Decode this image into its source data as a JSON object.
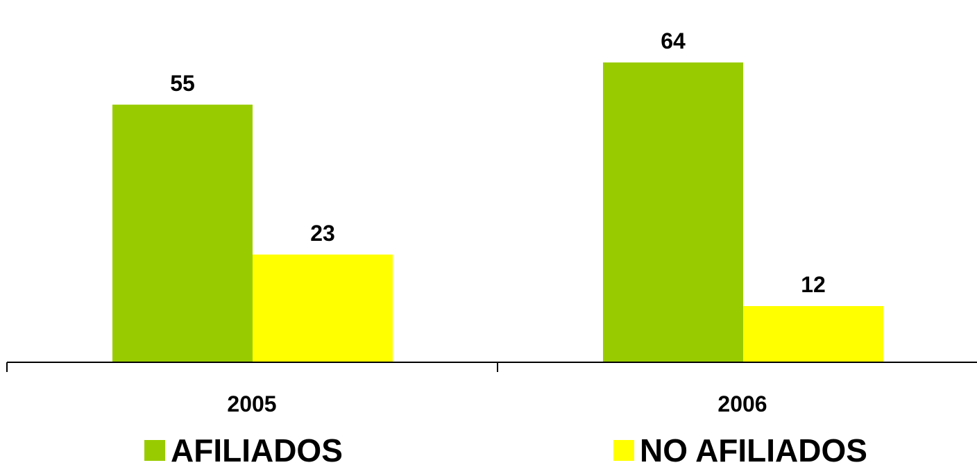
{
  "chart_data": {
    "type": "bar",
    "categories": [
      "2005",
      "2006"
    ],
    "series": [
      {
        "name": "AFILIADOS",
        "values": [
          55,
          64
        ],
        "color": "#99CC00"
      },
      {
        "name": "NO AFILIADOS",
        "values": [
          23,
          12
        ],
        "color": "#FFFF00"
      }
    ],
    "title": "",
    "xlabel": "",
    "ylabel": "",
    "ylim": [
      0,
      72
    ],
    "grid": false,
    "legend": "bottom"
  }
}
